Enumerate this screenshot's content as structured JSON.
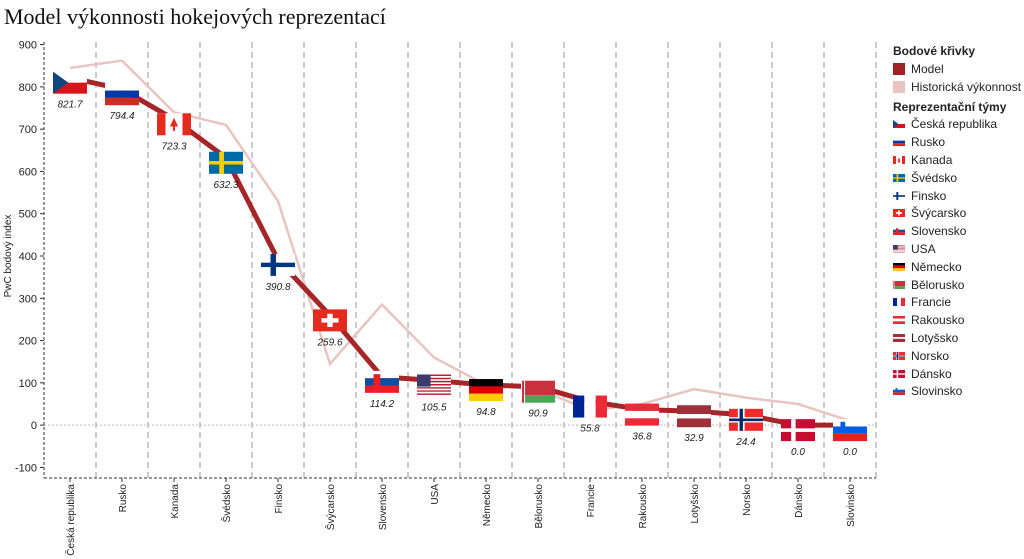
{
  "title": "Model výkonnosti hokejových reprezentací",
  "colors": {
    "model": "#a52528",
    "historical": "#e8c4c2",
    "grid": "#999999",
    "zero_line": "#bbbbbb"
  },
  "legend": {
    "curves_title": "Bodové křivky",
    "curves": [
      {
        "label": "Model",
        "color": "#9e2226"
      },
      {
        "label": "Historická výkonnost",
        "color": "#e8c4c2"
      }
    ],
    "teams_title": "Reprezentační týmy"
  },
  "chart_data": {
    "type": "line",
    "title": "Model výkonnosti hokejových reprezentací",
    "xlabel": "",
    "ylabel": "PwC bodový index",
    "ylim": [
      -125,
      925
    ],
    "yticks": [
      -100,
      0,
      100,
      200,
      300,
      400,
      500,
      600,
      700,
      800,
      900
    ],
    "grid": "vertical dashed",
    "legend_position": "right",
    "categories": [
      "Česká republika",
      "Rusko",
      "Kanada",
      "Švédsko",
      "Finsko",
      "Švýcarsko",
      "Slovensko",
      "USA",
      "Německo",
      "Bělorusko",
      "Francie",
      "Rakousko",
      "Lotyšsko",
      "Norsko",
      "Dánsko",
      "Slovinsko"
    ],
    "series": [
      {
        "name": "Model",
        "values": [
          821.7,
          794.4,
          723.3,
          632.3,
          390.8,
          259.6,
          114.2,
          105.5,
          94.8,
          90.9,
          55.8,
          36.8,
          32.9,
          24.4,
          0.0,
          0.0
        ]
      },
      {
        "name": "Historická výkonnost",
        "values": [
          845,
          862,
          740,
          710,
          530,
          145,
          285,
          160,
          95,
          85,
          35,
          50,
          85,
          65,
          50,
          10
        ]
      }
    ],
    "value_labels": [
      "821.7",
      "794.4",
      "723.3",
      "632.3",
      "390.8",
      "259.6",
      "114.2",
      "105.5",
      "94.8",
      "90.9",
      "55.8",
      "36.8",
      "32.9",
      "24.4",
      "0.0",
      "0.0"
    ],
    "teams": [
      {
        "name": "Česká republika",
        "flag": "cz"
      },
      {
        "name": "Rusko",
        "flag": "ru"
      },
      {
        "name": "Kanada",
        "flag": "ca"
      },
      {
        "name": "Švédsko",
        "flag": "se"
      },
      {
        "name": "Finsko",
        "flag": "fi"
      },
      {
        "name": "Švýcarsko",
        "flag": "ch"
      },
      {
        "name": "Slovensko",
        "flag": "sk"
      },
      {
        "name": "USA",
        "flag": "us"
      },
      {
        "name": "Německo",
        "flag": "de"
      },
      {
        "name": "Bělorusko",
        "flag": "by"
      },
      {
        "name": "Francie",
        "flag": "fr"
      },
      {
        "name": "Rakousko",
        "flag": "at"
      },
      {
        "name": "Lotyšsko",
        "flag": "lv"
      },
      {
        "name": "Norsko",
        "flag": "no"
      },
      {
        "name": "Dánsko",
        "flag": "dk"
      },
      {
        "name": "Slovinsko",
        "flag": "si"
      }
    ]
  }
}
